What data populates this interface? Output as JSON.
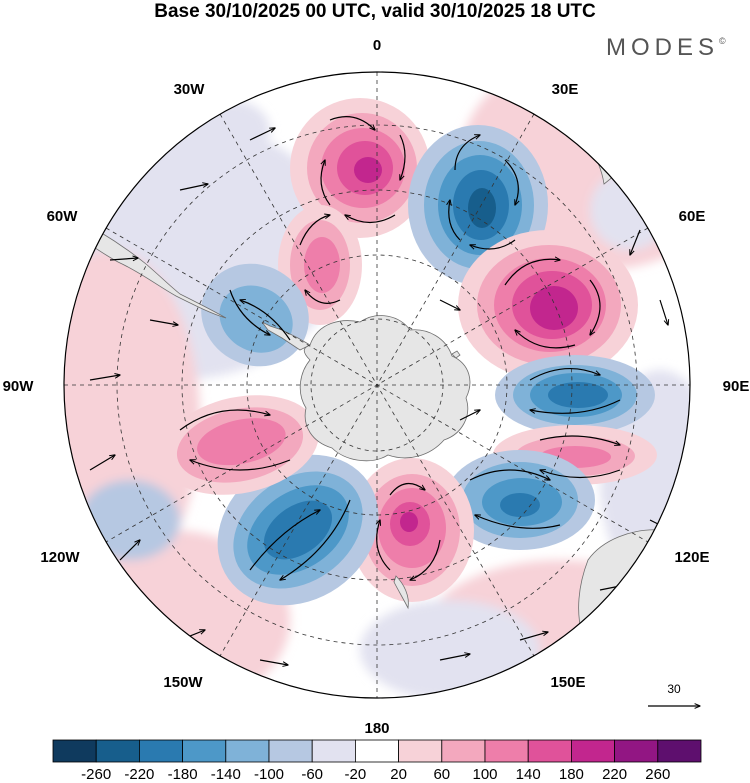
{
  "header": {
    "title": "Base 30/10/2025 00 UTC, valid 30/10/2025 18 UTC",
    "brand": "MODES",
    "brand_mark": "©"
  },
  "map": {
    "projection": "south polar stereographic",
    "field": "shaded anomaly with wind vectors",
    "longitude_labels": {
      "lon_0": "0",
      "lon_30e": "30E",
      "lon_60e": "60E",
      "lon_90e": "90E",
      "lon_120e": "120E",
      "lon_150e": "150E",
      "lon_180": "180",
      "lon_150w": "150W",
      "lon_120w": "120W",
      "lon_90w": "90W",
      "lon_60w": "60W",
      "lon_30w": "30W"
    },
    "reference_vector": "30",
    "colors": {
      "land": "#e6e6e6",
      "coast": "#6e6e6e",
      "grid": "#333333"
    }
  },
  "colorbar": {
    "labels": [
      "-260",
      "-220",
      "-180",
      "-140",
      "-100",
      "-60",
      "-20",
      "20",
      "60",
      "100",
      "140",
      "180",
      "220",
      "260"
    ],
    "colors": [
      "#0f3a5e",
      "#175e8c",
      "#2a7ab0",
      "#4d98c8",
      "#7fb2d8",
      "#b6c8e2",
      "#e2e2f0",
      "#ffffff",
      "#f7d2d8",
      "#f3a8be",
      "#ee7eaa",
      "#e0529a",
      "#c2268e",
      "#921683",
      "#5e0f6e"
    ]
  }
}
